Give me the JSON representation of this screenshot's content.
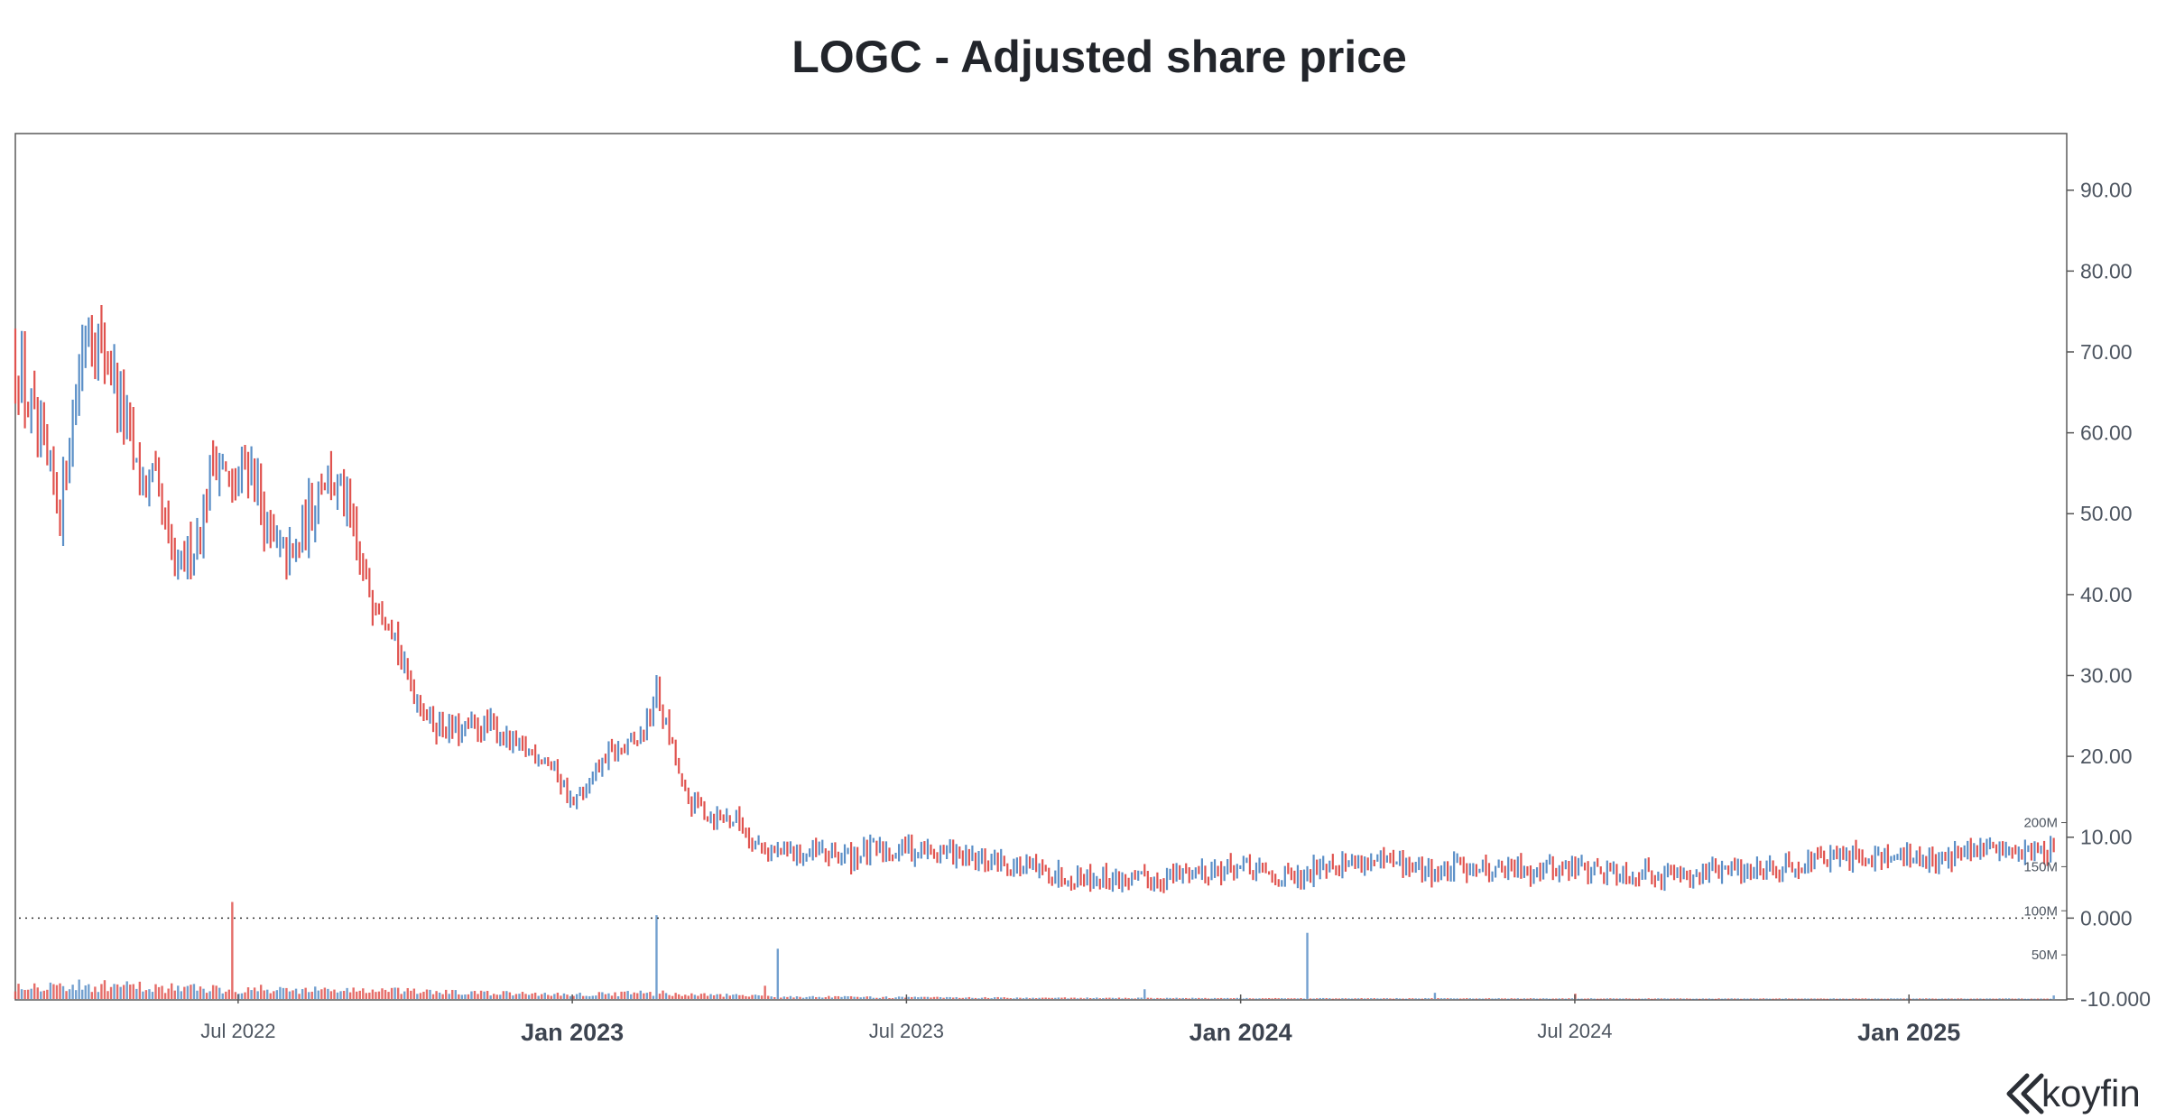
{
  "colors": {
    "up": "#5b8fc7",
    "down": "#e0534f",
    "frame": "#5a5a5a",
    "text": "#4d5560",
    "title": "#22252b"
  },
  "brand": {
    "name": "koyfin",
    "icon": "koyfin-logo-icon"
  },
  "chart_data": {
    "type": "candlestick",
    "title": "LOGC - Adjusted share price",
    "ticker": "LOGC",
    "xlabel": "",
    "ylabel": "",
    "y_axis": {
      "position": "right",
      "ylim": [
        -10,
        97
      ],
      "ticks": [
        -10,
        0,
        10,
        20,
        30,
        40,
        50,
        60,
        70,
        80,
        90
      ],
      "tick_labels": [
        "-10.000",
        "0.000",
        "10.00",
        "20.00",
        "30.00",
        "40.00",
        "50.00",
        "60.00",
        "70.00",
        "80.00",
        "90.00"
      ],
      "zero_reference_line": 0
    },
    "x_axis": {
      "range_months": [
        0,
        36.8
      ],
      "ticks": [
        {
          "label": "Jul 2022",
          "month": 4,
          "major": false
        },
        {
          "label": "Jan 2023",
          "month": 10,
          "major": true
        },
        {
          "label": "Jul 2023",
          "month": 16,
          "major": false
        },
        {
          "label": "Jan 2024",
          "month": 22,
          "major": true
        },
        {
          "label": "Jul 2024",
          "month": 28,
          "major": false
        },
        {
          "label": "Jan 2025",
          "month": 34,
          "major": true
        }
      ]
    },
    "volume_axis": {
      "unit": "M",
      "max": 220,
      "ticks": [
        50,
        100,
        150,
        200
      ],
      "tick_labels": [
        "50M",
        "100M",
        "150M",
        "200M"
      ]
    },
    "price_waypoints": [
      [
        0,
        70
      ],
      [
        0.3,
        62
      ],
      [
        0.55,
        56
      ],
      [
        0.8,
        50
      ],
      [
        1.0,
        62
      ],
      [
        1.3,
        75
      ],
      [
        1.6,
        70
      ],
      [
        1.9,
        64
      ],
      [
        2.2,
        54
      ],
      [
        2.5,
        53
      ],
      [
        2.7,
        48
      ],
      [
        2.9,
        42
      ],
      [
        3.3,
        48
      ],
      [
        3.6,
        58
      ],
      [
        3.9,
        52
      ],
      [
        4.2,
        57
      ],
      [
        4.6,
        46
      ],
      [
        5.0,
        44
      ],
      [
        5.5,
        55
      ],
      [
        5.9,
        52
      ],
      [
        6.3,
        41
      ],
      [
        6.7,
        38
      ],
      [
        7.0,
        30
      ],
      [
        7.5,
        24
      ],
      [
        8.0,
        23
      ],
      [
        8.5,
        24
      ],
      [
        9.0,
        21
      ],
      [
        9.5,
        20
      ],
      [
        9.8,
        17
      ],
      [
        10.0,
        14
      ],
      [
        10.3,
        16
      ],
      [
        10.6,
        20
      ],
      [
        11.0,
        21
      ],
      [
        11.3,
        23
      ],
      [
        11.5,
        28
      ],
      [
        11.8,
        21
      ],
      [
        12.0,
        15
      ],
      [
        12.4,
        13
      ],
      [
        13.0,
        12
      ],
      [
        13.3,
        9
      ],
      [
        13.8,
        8
      ],
      [
        14.5,
        8
      ],
      [
        15.0,
        7.5
      ],
      [
        15.5,
        8.5
      ],
      [
        16.0,
        8.5
      ],
      [
        16.8,
        8
      ],
      [
        17.2,
        7
      ],
      [
        18.0,
        6.5
      ],
      [
        18.5,
        5.5
      ],
      [
        19.5,
        5
      ],
      [
        20.2,
        4.5
      ],
      [
        20.8,
        5.5
      ],
      [
        21.5,
        6
      ],
      [
        22.0,
        6
      ],
      [
        22.6,
        5
      ],
      [
        23.2,
        4.8
      ],
      [
        23.4,
        7
      ],
      [
        24.0,
        7
      ],
      [
        25.0,
        6.5
      ],
      [
        25.6,
        5.5
      ],
      [
        26.0,
        6.5
      ],
      [
        26.8,
        6
      ],
      [
        28.0,
        6.2
      ],
      [
        29.0,
        5.6
      ],
      [
        30.0,
        5.5
      ],
      [
        31.0,
        6
      ],
      [
        32.0,
        6.8
      ],
      [
        33.0,
        7.5
      ],
      [
        33.6,
        8
      ],
      [
        34.0,
        7.2
      ],
      [
        35.0,
        8
      ],
      [
        35.8,
        8.6
      ],
      [
        36.3,
        8.2
      ],
      [
        36.6,
        8.6
      ]
    ],
    "volume_spikes": [
      {
        "month": 3.9,
        "value": 110,
        "direction": "down"
      },
      {
        "month": 11.5,
        "value": 95,
        "direction": "up"
      },
      {
        "month": 13.7,
        "value": 57,
        "direction": "up"
      },
      {
        "month": 13.45,
        "value": 15,
        "direction": "down"
      },
      {
        "month": 20.3,
        "value": 11,
        "direction": "up"
      },
      {
        "month": 23.2,
        "value": 75,
        "direction": "up"
      },
      {
        "month": 25.5,
        "value": 7,
        "direction": "up"
      },
      {
        "month": 28.0,
        "value": 6,
        "direction": "down"
      },
      {
        "month": 36.6,
        "value": 4,
        "direction": "up"
      }
    ],
    "volume_baseline_waypoints": [
      [
        0,
        16
      ],
      [
        2,
        14
      ],
      [
        4,
        11
      ],
      [
        6,
        10
      ],
      [
        8,
        7
      ],
      [
        10,
        5
      ],
      [
        11.5,
        7
      ],
      [
        12,
        5
      ],
      [
        14,
        2.5
      ],
      [
        17,
        1.5
      ],
      [
        22,
        0.8
      ],
      [
        30,
        0.5
      ],
      [
        36.6,
        0.5
      ]
    ]
  }
}
